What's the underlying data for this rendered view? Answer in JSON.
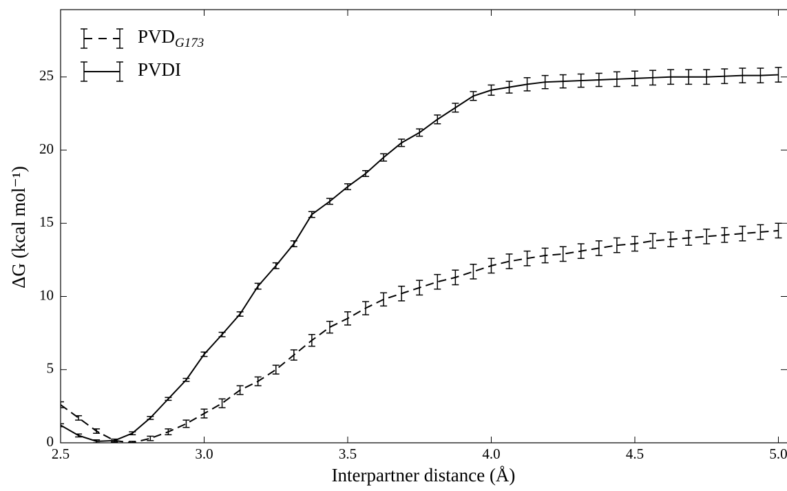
{
  "chart_data": {
    "type": "errorbar-line",
    "xlabel": "Interpartner distance (Å)",
    "ylabel": "ΔG (kcal mol⁻¹)",
    "x": [
      2.5,
      2.5625,
      2.625,
      2.6875,
      2.75,
      2.8125,
      2.875,
      2.9375,
      3,
      3.0625,
      3.125,
      3.1875,
      3.25,
      3.3125,
      3.375,
      3.4375,
      3.5,
      3.5625,
      3.625,
      3.6875,
      3.75,
      3.8125,
      3.875,
      3.9375,
      4,
      4.0625,
      4.125,
      4.1875,
      4.25,
      4.3125,
      4.375,
      4.4375,
      4.5,
      4.5625,
      4.625,
      4.6875,
      4.75,
      4.8125,
      4.875,
      4.9375,
      5
    ],
    "series": [
      {
        "name": "PVD",
        "subscript": "G173",
        "color": "#000000",
        "linestyle": "dashed",
        "values": [
          2.6,
          1.7,
          0.8,
          0.15,
          0.0,
          0.3,
          0.75,
          1.3,
          2.0,
          2.7,
          3.6,
          4.2,
          5.0,
          6.0,
          7.0,
          7.9,
          8.5,
          9.2,
          9.8,
          10.2,
          10.6,
          11.0,
          11.3,
          11.7,
          12.1,
          12.4,
          12.6,
          12.8,
          12.9,
          13.1,
          13.3,
          13.5,
          13.6,
          13.8,
          13.9,
          14.0,
          14.1,
          14.2,
          14.3,
          14.4,
          14.5
        ],
        "errors": [
          0.2,
          0.15,
          0.15,
          0.1,
          0.1,
          0.15,
          0.2,
          0.25,
          0.3,
          0.3,
          0.3,
          0.3,
          0.3,
          0.35,
          0.4,
          0.4,
          0.45,
          0.45,
          0.45,
          0.5,
          0.5,
          0.5,
          0.5,
          0.5,
          0.5,
          0.5,
          0.5,
          0.5,
          0.5,
          0.5,
          0.5,
          0.5,
          0.5,
          0.5,
          0.5,
          0.5,
          0.5,
          0.5,
          0.5,
          0.5,
          0.5
        ]
      },
      {
        "name": "PVDI",
        "color": "#000000",
        "linestyle": "solid",
        "values": [
          1.2,
          0.5,
          0.1,
          0.15,
          0.65,
          1.7,
          3.0,
          4.3,
          6.05,
          7.4,
          8.8,
          10.7,
          12.1,
          13.6,
          15.6,
          16.5,
          17.5,
          18.4,
          19.5,
          20.5,
          21.2,
          22.1,
          22.9,
          23.7,
          24.1,
          24.3,
          24.5,
          24.65,
          24.7,
          24.75,
          24.8,
          24.85,
          24.9,
          24.95,
          25.0,
          25.0,
          25.0,
          25.05,
          25.1,
          25.1,
          25.15
        ],
        "errors": [
          0.1,
          0.1,
          0.1,
          0.1,
          0.1,
          0.1,
          0.1,
          0.1,
          0.15,
          0.15,
          0.15,
          0.2,
          0.2,
          0.2,
          0.2,
          0.2,
          0.2,
          0.2,
          0.25,
          0.25,
          0.25,
          0.3,
          0.3,
          0.3,
          0.35,
          0.4,
          0.45,
          0.45,
          0.45,
          0.45,
          0.45,
          0.5,
          0.5,
          0.5,
          0.5,
          0.5,
          0.5,
          0.5,
          0.5,
          0.5,
          0.5
        ]
      }
    ],
    "xlim": [
      2.5,
      5.03
    ],
    "ylim": [
      0,
      29.6
    ],
    "xticks": [
      2.5,
      {
        "value": 3,
        "label": "3.0"
      },
      3.5,
      {
        "value": 4,
        "label": "4.0"
      },
      4.5,
      {
        "value": 5,
        "label": "5.0"
      }
    ],
    "yticks": [
      0,
      5,
      10,
      15,
      20,
      25
    ],
    "grid": false,
    "legend": "upper left"
  }
}
